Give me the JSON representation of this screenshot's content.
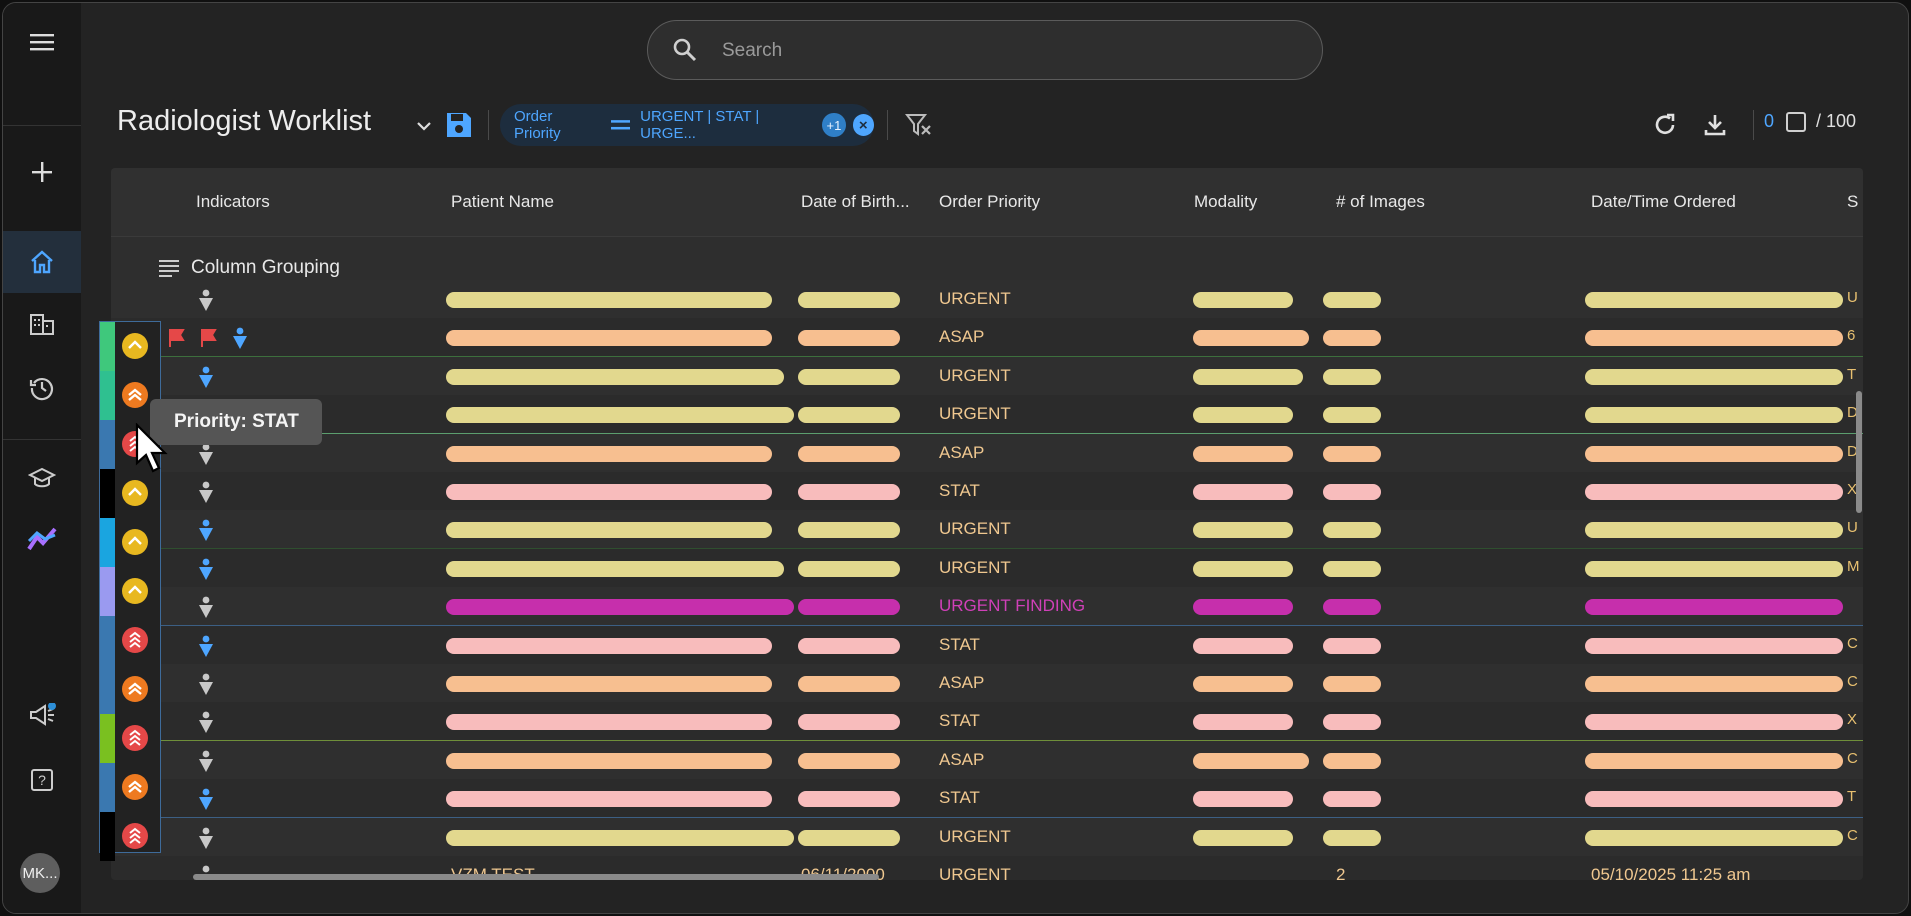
{
  "search": {
    "placeholder": "Search"
  },
  "header": {
    "title": "Radiologist Worklist"
  },
  "filter_chip": {
    "field": "Order Priority",
    "values": "URGENT | STAT | URGE...",
    "more": "+1"
  },
  "counter": {
    "selected": "0",
    "total": "/ 100"
  },
  "columns": [
    "Indicators",
    "Patient Name",
    "Date of Birth...",
    "Order Priority",
    "Modality",
    "# of Images",
    "Date/Time Ordered",
    "S"
  ],
  "grouping": {
    "label": "Column Grouping"
  },
  "tooltip": "Priority: STAT",
  "user": {
    "initials": "MK..."
  },
  "rows": [
    {
      "priority": "URGENT",
      "cut": "U"
    },
    {
      "priority": "ASAP",
      "cut": "6"
    },
    {
      "priority": "URGENT",
      "cut": "T"
    },
    {
      "priority": "URGENT",
      "cut": "D"
    },
    {
      "priority": "ASAP",
      "cut": "D"
    },
    {
      "priority": "STAT",
      "cut": "X"
    },
    {
      "priority": "URGENT",
      "cut": "U"
    },
    {
      "priority": "URGENT",
      "cut": "M"
    },
    {
      "priority": "URGENT FINDING",
      "cut": ""
    },
    {
      "priority": "STAT",
      "cut": "C"
    },
    {
      "priority": "ASAP",
      "cut": "C"
    },
    {
      "priority": "STAT",
      "cut": "X"
    },
    {
      "priority": "ASAP",
      "cut": "C"
    },
    {
      "priority": "STAT",
      "cut": "T"
    },
    {
      "priority": "URGENT",
      "cut": "C"
    },
    {
      "priority": "URGENT",
      "cut": "",
      "patient": "VZM TEST",
      "dob": "06/11/2000",
      "images": "2",
      "ordered": "05/10/2025 11:25 am"
    }
  ],
  "colors": {
    "urgent": "#e2d88e",
    "asap": "#f7bf90",
    "stat": "#f8bcbc",
    "finding": "#c62fac",
    "accent": "#4ea6ff",
    "urgent_text": "#f0c890",
    "finding_text": "#d040b8"
  }
}
